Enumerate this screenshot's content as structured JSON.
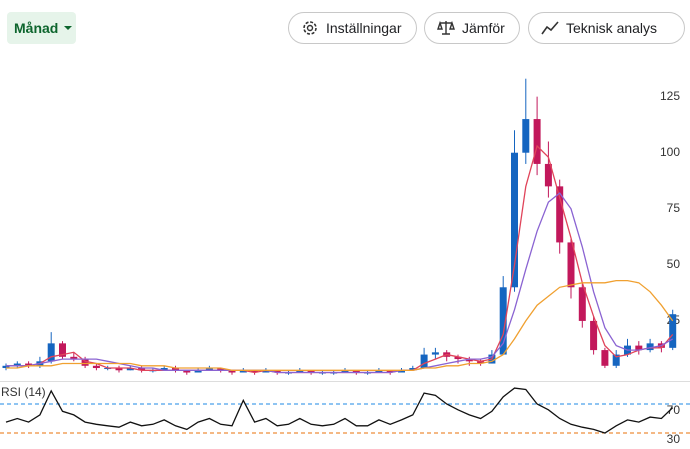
{
  "toolbar": {
    "period": "Månad",
    "buttons": [
      "Inställningar",
      "Jämför",
      "Teknisk analys"
    ]
  },
  "chart_data": [
    {
      "type": "candlestick",
      "up_color": "#1565c0",
      "down_color": "#c2185b",
      "open": [
        4,
        5,
        6,
        5,
        7,
        15,
        9,
        8,
        5,
        4,
        4,
        3,
        4,
        3,
        3,
        4,
        3,
        2,
        3,
        4,
        3,
        2,
        3,
        2,
        3,
        2,
        2,
        3,
        2,
        2,
        2,
        3,
        2,
        2,
        3,
        2,
        3,
        4,
        10,
        11,
        9,
        8,
        7,
        6,
        10,
        40,
        100,
        115,
        95,
        85,
        60,
        40,
        25,
        12,
        5,
        10,
        14,
        12,
        15,
        13
      ],
      "high": [
        6,
        7,
        7,
        9,
        20,
        16,
        11,
        9,
        6,
        5,
        5,
        5,
        5,
        4,
        5,
        5,
        3,
        4,
        5,
        4,
        3,
        4,
        3,
        4,
        3,
        3,
        4,
        3,
        3,
        3,
        4,
        3,
        3,
        4,
        3,
        4,
        5,
        13,
        13,
        12,
        10,
        9,
        8,
        12,
        45,
        110,
        133,
        125,
        105,
        88,
        62,
        42,
        27,
        13,
        12,
        17,
        16,
        17,
        16,
        30
      ],
      "low": [
        3,
        4,
        4,
        4,
        6,
        8,
        7,
        4,
        3,
        3,
        2,
        3,
        2,
        2,
        3,
        2,
        1,
        2,
        3,
        2,
        1,
        2,
        1,
        2,
        1,
        1,
        2,
        1,
        1,
        1,
        2,
        1,
        1,
        2,
        1,
        2,
        3,
        4,
        8,
        7,
        6,
        5,
        5,
        6,
        10,
        38,
        95,
        90,
        80,
        55,
        35,
        22,
        10,
        4,
        4,
        9,
        10,
        11,
        11,
        12
      ],
      "close": [
        5,
        6,
        5,
        7,
        15,
        9,
        8,
        5,
        4,
        4,
        3,
        4,
        3,
        3,
        4,
        3,
        2,
        3,
        4,
        3,
        2,
        3,
        2,
        3,
        2,
        2,
        3,
        2,
        2,
        2,
        3,
        2,
        2,
        3,
        2,
        3,
        4,
        10,
        11,
        9,
        8,
        7,
        6,
        10,
        40,
        100,
        115,
        95,
        85,
        60,
        40,
        25,
        12,
        5,
        10,
        14,
        12,
        15,
        13,
        28
      ],
      "series": [
        {
          "color": "#e0445a",
          "values": [
            5,
            5,
            5,
            6,
            9,
            10,
            11,
            7,
            6,
            4,
            4,
            4,
            3,
            3,
            3,
            3,
            3,
            3,
            3,
            3,
            3,
            3,
            2,
            3,
            2,
            2,
            2,
            2,
            2,
            2,
            2,
            2,
            2,
            2,
            2,
            3,
            3,
            6,
            8,
            10,
            9,
            8,
            7,
            8,
            19,
            50,
            85,
            103,
            98,
            80,
            62,
            42,
            27,
            14,
            9,
            10,
            12,
            13,
            13,
            19
          ]
        },
        {
          "color": "#8a63d2",
          "values": [
            5,
            5,
            5,
            6,
            7,
            8,
            8,
            8,
            8,
            7,
            6,
            5,
            4,
            4,
            3,
            3,
            3,
            3,
            3,
            3,
            3,
            3,
            3,
            3,
            2,
            2,
            2,
            2,
            2,
            2,
            2,
            2,
            2,
            2,
            2,
            3,
            3,
            4,
            5,
            6,
            7,
            8,
            8,
            9,
            15,
            30,
            48,
            65,
            78,
            82,
            75,
            58,
            38,
            22,
            14,
            12,
            12,
            13,
            14,
            17
          ]
        },
        {
          "color": "#f0a030",
          "values": [
            4,
            4,
            5,
            5,
            5,
            6,
            6,
            6,
            6,
            6,
            6,
            6,
            5,
            5,
            5,
            4,
            4,
            4,
            4,
            4,
            3,
            3,
            3,
            3,
            3,
            3,
            3,
            3,
            3,
            3,
            3,
            3,
            3,
            3,
            3,
            3,
            3,
            4,
            4,
            5,
            5,
            6,
            6,
            7,
            10,
            17,
            25,
            32,
            36,
            40,
            41,
            42,
            42,
            42,
            43,
            43,
            42,
            38,
            32,
            25
          ]
        }
      ],
      "ylim": [
        0,
        140
      ],
      "yticks": [
        25,
        50,
        75,
        100,
        125
      ],
      "grid": false
    },
    {
      "type": "line",
      "title": "RSI (14)",
      "color": "#111111",
      "values": [
        45,
        50,
        45,
        55,
        88,
        60,
        55,
        45,
        42,
        40,
        38,
        45,
        40,
        42,
        48,
        40,
        35,
        45,
        50,
        42,
        40,
        75,
        45,
        50,
        40,
        42,
        50,
        42,
        40,
        42,
        50,
        40,
        40,
        48,
        42,
        48,
        55,
        85,
        82,
        70,
        62,
        55,
        50,
        60,
        80,
        92,
        90,
        70,
        62,
        50,
        42,
        38,
        35,
        30,
        40,
        48,
        45,
        52,
        50,
        65
      ],
      "ylim": [
        10,
        100
      ],
      "yticks": [
        30,
        70
      ],
      "grid": true,
      "grid_colors": [
        "#e8710a",
        "#1e88e5"
      ]
    }
  ]
}
